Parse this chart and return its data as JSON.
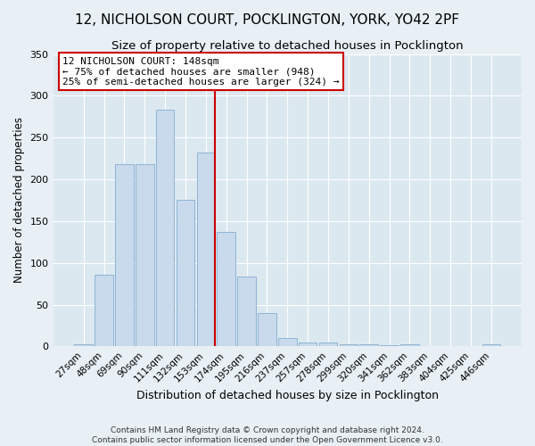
{
  "title": "12, NICHOLSON COURT, POCKLINGTON, YORK, YO42 2PF",
  "subtitle": "Size of property relative to detached houses in Pocklington",
  "xlabel": "Distribution of detached houses by size in Pocklington",
  "ylabel": "Number of detached properties",
  "footer1": "Contains HM Land Registry data © Crown copyright and database right 2024.",
  "footer2": "Contains public sector information licensed under the Open Government Licence v3.0.",
  "bin_labels": [
    "27sqm",
    "48sqm",
    "69sqm",
    "90sqm",
    "111sqm",
    "132sqm",
    "153sqm",
    "174sqm",
    "195sqm",
    "216sqm",
    "237sqm",
    "257sqm",
    "278sqm",
    "299sqm",
    "320sqm",
    "341sqm",
    "362sqm",
    "383sqm",
    "404sqm",
    "425sqm",
    "446sqm"
  ],
  "bar_values": [
    3,
    86,
    218,
    218,
    283,
    175,
    232,
    137,
    84,
    40,
    10,
    5,
    5,
    3,
    3,
    1,
    3,
    0,
    0,
    0,
    2
  ],
  "bar_color": "#c8daec",
  "bar_edge_color": "#8db4d5",
  "vline_x": 6.45,
  "vline_color": "#cc0000",
  "annotation_line1": "12 NICHOLSON COURT: 148sqm",
  "annotation_line2": "← 75% of detached houses are smaller (948)",
  "annotation_line3": "25% of semi-detached houses are larger (324) →",
  "annotation_box_facecolor": "#ffffff",
  "annotation_box_edgecolor": "#cc0000",
  "ylim": [
    0,
    350
  ],
  "yticks": [
    0,
    50,
    100,
    150,
    200,
    250,
    300,
    350
  ],
  "plot_bg_color": "#dce8f0",
  "fig_bg_color": "#e8f0f5",
  "grid_color": "#ffffff",
  "title_fontsize": 11,
  "subtitle_fontsize": 9.5,
  "ylabel_fontsize": 8.5,
  "xlabel_fontsize": 9,
  "tick_fontsize": 7.5,
  "footer_fontsize": 6.5,
  "ann_fontsize": 8
}
